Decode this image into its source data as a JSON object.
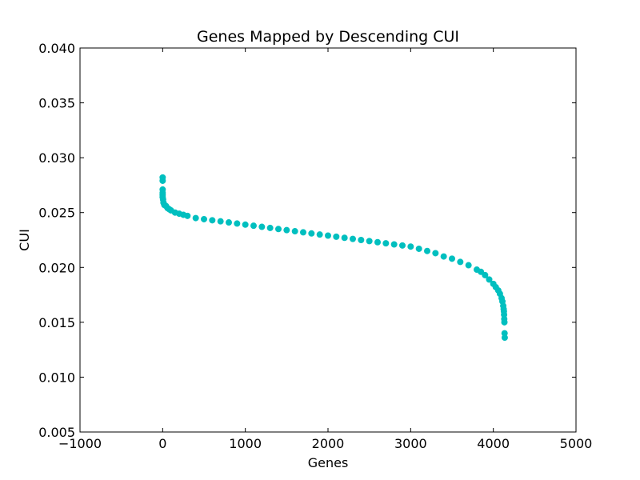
{
  "chart_data": {
    "type": "scatter",
    "title": "Genes Mapped by Descending CUI",
    "xlabel": "Genes",
    "ylabel": "CUI",
    "xlim": [
      -1000,
      5000
    ],
    "ylim": [
      0.005,
      0.04
    ],
    "xticks": [
      "−1000",
      "0",
      "1000",
      "2000",
      "3000",
      "4000",
      "5000"
    ],
    "yticks": [
      "0.005",
      "0.010",
      "0.015",
      "0.020",
      "0.025",
      "0.030",
      "0.035",
      "0.040"
    ],
    "grid": false,
    "marker_color": "#00bfbf",
    "series": [
      {
        "x": [
          0,
          0,
          0,
          0,
          0,
          0,
          5,
          10,
          20,
          40,
          60,
          80,
          100,
          150,
          200,
          250,
          300,
          400,
          500,
          600,
          700,
          800,
          900,
          1000,
          1100,
          1200,
          1300,
          1400,
          1500,
          1600,
          1700,
          1800,
          1900,
          2000,
          2100,
          2200,
          2300,
          2400,
          2500,
          2600,
          2700,
          2800,
          2900,
          3000,
          3100,
          3200,
          3300,
          3400,
          3500,
          3600,
          3700,
          3800,
          3850,
          3900,
          3950,
          4000,
          4030,
          4060,
          4080,
          4100,
          4110,
          4120,
          4125,
          4128,
          4130,
          4132,
          4134,
          4136,
          4138
        ],
        "y": [
          0.0282,
          0.0279,
          0.0271,
          0.0268,
          0.0266,
          0.0264,
          0.0262,
          0.0259,
          0.0257,
          0.0256,
          0.0254,
          0.0253,
          0.0252,
          0.025,
          0.0249,
          0.0248,
          0.0247,
          0.0245,
          0.0244,
          0.0243,
          0.0242,
          0.0241,
          0.024,
          0.0239,
          0.0238,
          0.0237,
          0.0236,
          0.0235,
          0.0234,
          0.0233,
          0.0232,
          0.0231,
          0.023,
          0.0229,
          0.0228,
          0.0227,
          0.0226,
          0.0225,
          0.0224,
          0.0223,
          0.0222,
          0.0221,
          0.022,
          0.0219,
          0.0217,
          0.0215,
          0.0213,
          0.021,
          0.0208,
          0.0205,
          0.0202,
          0.0198,
          0.0196,
          0.0193,
          0.0189,
          0.0185,
          0.0182,
          0.0179,
          0.0176,
          0.0172,
          0.0169,
          0.0165,
          0.0162,
          0.016,
          0.0157,
          0.0153,
          0.015,
          0.014,
          0.0136
        ]
      }
    ]
  }
}
